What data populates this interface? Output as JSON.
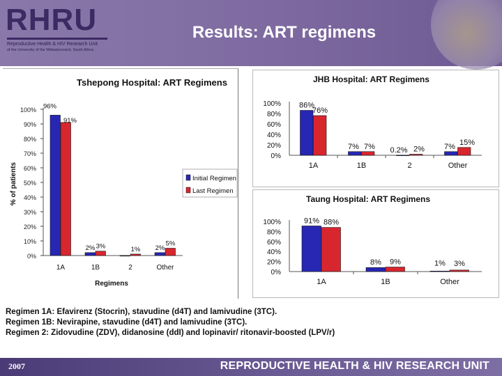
{
  "header": {
    "logo_text": "RHRU",
    "logo_subtitle_1": "Reproductive Health & HIV Research Unit",
    "logo_subtitle_2": "of the University of the Witwatersrand, South Africa",
    "title": "Results: ART regimens"
  },
  "colors": {
    "initial_regimen": "#2727b4",
    "last_regimen": "#d8262f",
    "header_purple": "#7e6aa0",
    "footer_purple": "#4a3a76"
  },
  "chart_data": [
    {
      "type": "bar",
      "title": "Tshepong Hospital: ART Regimens",
      "categories": [
        "1A",
        "1B",
        "2",
        "Other"
      ],
      "series": [
        {
          "name": "Initial Regimen",
          "values": [
            96,
            2,
            0,
            2
          ]
        },
        {
          "name": "Last Regimen",
          "values": [
            91,
            3,
            1,
            5
          ]
        }
      ],
      "data_labels": [
        [
          "96%",
          "2%",
          "",
          "2%"
        ],
        [
          "91%",
          "3%",
          "1%",
          "5%"
        ]
      ],
      "xlabel": "Regimens",
      "ylabel": "% of patients",
      "ylim": [
        0,
        100
      ],
      "yticks": [
        "0%",
        "10%",
        "20%",
        "30%",
        "40%",
        "50%",
        "60%",
        "70%",
        "80%",
        "90%",
        "100%"
      ],
      "legend_placement": "right"
    },
    {
      "type": "bar",
      "title": "JHB Hospital: ART Regimens",
      "categories": [
        "1A",
        "1B",
        "2",
        "Other"
      ],
      "series": [
        {
          "values": [
            86,
            7,
            0.2,
            7
          ]
        },
        {
          "values": [
            76,
            7,
            2,
            15
          ]
        }
      ],
      "data_labels": [
        [
          "86%",
          "7%",
          "0.2%",
          "7%"
        ],
        [
          "76%",
          "7%",
          "2%",
          "15%"
        ]
      ],
      "ylim": [
        0,
        100
      ],
      "yticks": [
        "0%",
        "20%",
        "40%",
        "60%",
        "80%",
        "100%"
      ]
    },
    {
      "type": "bar",
      "title": "Taung Hospital: ART Regimens",
      "categories": [
        "1A",
        "1B",
        "Other"
      ],
      "series": [
        {
          "values": [
            91,
            8,
            1
          ]
        },
        {
          "values": [
            88,
            9,
            3
          ]
        }
      ],
      "data_labels": [
        [
          "91%",
          "8%",
          "1%"
        ],
        [
          "88%",
          "9%",
          "3%"
        ]
      ],
      "ylim": [
        0,
        100
      ],
      "yticks": [
        "0%",
        "20%",
        "40%",
        "60%",
        "80%",
        "100%"
      ]
    }
  ],
  "notes": [
    "Regimen 1A: Efavirenz (Stocrin), stavudine (d4T) and lamivudine (3TC).",
    "Regimen 1B: Nevirapine, stavudine (d4T) and lamivudine (3TC).",
    "Regimen 2: Zidovudine (ZDV), didanosine (ddI) and lopinavir/ ritonavir-boosted (LPV/r)"
  ],
  "footer": {
    "year": "2007",
    "unit_name": "REPRODUCTIVE HEALTH & HIV RESEARCH UNIT"
  }
}
